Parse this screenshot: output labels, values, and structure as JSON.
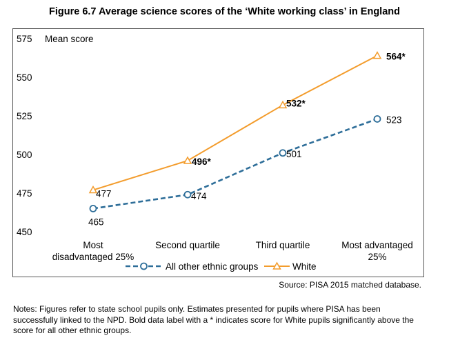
{
  "title": "Figure 6.7 Average science scores of the ‘White working class’ in England",
  "chart_data": {
    "type": "line",
    "ylabel": "Mean score",
    "ylim": [
      450,
      575
    ],
    "yticks": [
      450,
      475,
      500,
      525,
      550,
      575
    ],
    "grid": false,
    "legend_position": "bottom",
    "categories": [
      [
        "Most",
        "disadvantaged 25%"
      ],
      [
        "Second quartile"
      ],
      [
        "Third quartile"
      ],
      [
        "Most advantaged",
        "25%"
      ]
    ],
    "series": [
      {
        "name": "All other ethnic groups",
        "values": [
          465,
          474,
          501,
          523
        ],
        "labels": [
          "465",
          "474",
          "501",
          "523"
        ],
        "bold": [
          false,
          false,
          false,
          false
        ],
        "color": "#2E6E99",
        "marker": "circle",
        "dash": true
      },
      {
        "name": "White",
        "values": [
          477,
          496,
          532,
          564
        ],
        "labels": [
          "477",
          "496*",
          "532*",
          "564*"
        ],
        "bold": [
          false,
          true,
          true,
          true
        ],
        "color": "#F39C2C",
        "marker": "triangle",
        "dash": false
      }
    ]
  },
  "source": "Source: PISA 2015 matched database.",
  "notes": "Notes: Figures refer to state school pupils only. Estimates presented for pupils where PISA has been successfully linked to the NPD. Bold data label with a * indicates score for White pupils significantly above the score for all other ethnic groups."
}
